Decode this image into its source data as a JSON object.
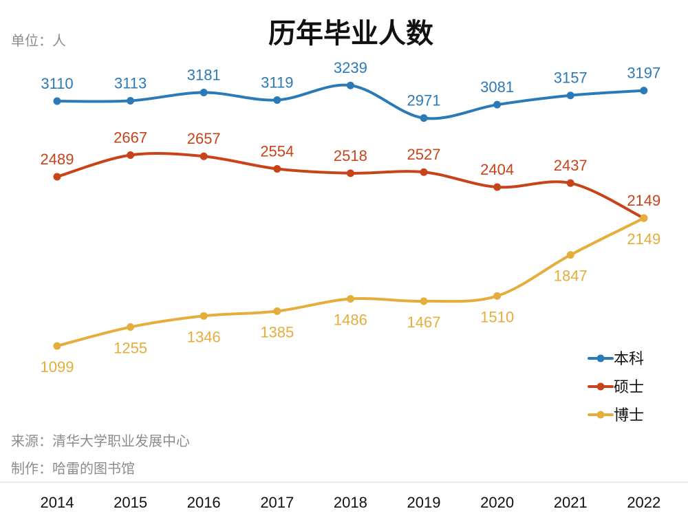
{
  "chart_data": {
    "type": "line",
    "title": "历年毕业人数",
    "unit_label": "单位：人",
    "source": "来源：清华大学职业发展中心",
    "maker": "制作：哈雷的图书馆",
    "categories": [
      "2014",
      "2015",
      "2016",
      "2017",
      "2018",
      "2019",
      "2020",
      "2021",
      "2022"
    ],
    "xlabel": "",
    "ylabel": "",
    "grid": false,
    "legend_position": "bottom-right",
    "series": [
      {
        "name": "本科",
        "color": "#2a7ab8",
        "values": [
          3110,
          3113,
          3181,
          3119,
          3239,
          2971,
          3081,
          3157,
          3197
        ]
      },
      {
        "name": "硕士",
        "color": "#c8431a",
        "values": [
          2489,
          2667,
          2657,
          2554,
          2518,
          2527,
          2404,
          2437,
          2149
        ]
      },
      {
        "name": "博士",
        "color": "#e4ad3c",
        "values": [
          1099,
          1255,
          1346,
          1385,
          1486,
          1467,
          1510,
          1847,
          2149
        ]
      }
    ]
  }
}
